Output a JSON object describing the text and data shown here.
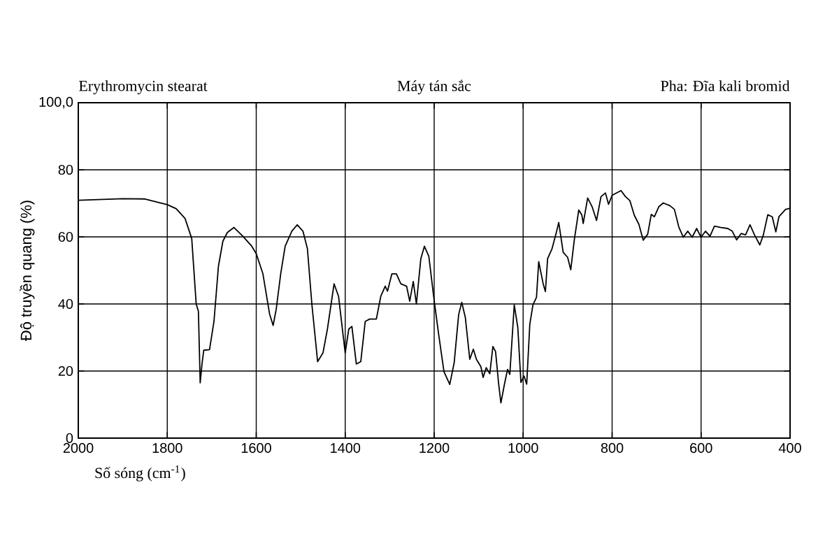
{
  "chart_data": {
    "type": "line",
    "xlabel": "Số sóng (cm$^{-1}$)",
    "ylabel": "Độ truyền quang (%)",
    "annotations": [
      "Erythromycin stearat",
      "Máy tán sắc",
      "Pha: Đĩa kali bromid"
    ],
    "xlim": [
      2000,
      400
    ],
    "ylim": [
      0,
      100
    ],
    "xticks": [
      2000,
      1800,
      1600,
      1400,
      1200,
      1000,
      800,
      600,
      400
    ],
    "yticks": [
      0,
      20,
      40,
      60,
      80,
      {
        "value": 100,
        "label": "100,0"
      }
    ],
    "grid": true,
    "marker": "none",
    "line_style": "solid",
    "series": [
      {
        "color": "#000000",
        "x": [
          2000,
          1900,
          1850,
          1800,
          1780,
          1760,
          1745,
          1735,
          1730,
          1726,
          1722,
          1718,
          1705,
          1695,
          1685,
          1675,
          1665,
          1650,
          1630,
          1610,
          1600,
          1585,
          1570,
          1562,
          1555,
          1545,
          1535,
          1520,
          1508,
          1495,
          1485,
          1475,
          1462,
          1450,
          1440,
          1425,
          1415,
          1405,
          1400,
          1392,
          1385,
          1375,
          1365,
          1355,
          1345,
          1330,
          1320,
          1310,
          1305,
          1295,
          1285,
          1275,
          1262,
          1255,
          1247,
          1240,
          1230,
          1222,
          1212,
          1200,
          1190,
          1178,
          1165,
          1155,
          1145,
          1138,
          1130,
          1120,
          1112,
          1105,
          1095,
          1090,
          1083,
          1075,
          1068,
          1062,
          1055,
          1050,
          1042,
          1035,
          1030,
          1020,
          1012,
          1005,
          998,
          992,
          985,
          978,
          970,
          965,
          955,
          950,
          945,
          935,
          925,
          920,
          910,
          900,
          893,
          885,
          875,
          868,
          865,
          855,
          845,
          835,
          825,
          815,
          808,
          800,
          790,
          780,
          770,
          760,
          750,
          740,
          730,
          720,
          712,
          705,
          695,
          685,
          670,
          660,
          650,
          640,
          630,
          620,
          610,
          600,
          590,
          580,
          570,
          555,
          540,
          530,
          520,
          510,
          500,
          490,
          480,
          468,
          460,
          450,
          440,
          432,
          425,
          410,
          400
        ],
        "values": [
          70.9,
          71.4,
          71.3,
          69.6,
          68.4,
          65.5,
          59.5,
          40,
          37.8,
          16.5,
          22,
          26.2,
          26.4,
          34.8,
          51.2,
          58.7,
          61.3,
          62.8,
          60.2,
          57.2,
          55,
          49,
          37,
          33.6,
          38.5,
          49,
          57.2,
          61.7,
          63.6,
          61.7,
          56.5,
          40,
          22.8,
          25.4,
          32.5,
          46,
          42.3,
          31,
          25.4,
          32.5,
          33.3,
          22.1,
          22.8,
          34.8,
          35.5,
          35.5,
          42.3,
          45.3,
          43.8,
          49,
          49,
          46,
          45.3,
          40.8,
          46.7,
          40,
          53.5,
          57.2,
          54.2,
          41,
          31,
          19.8,
          16,
          22.5,
          36.8,
          40.5,
          36,
          23.5,
          26.5,
          23.5,
          21.3,
          18.1,
          21,
          19.2,
          27.3,
          25.8,
          16.1,
          10.5,
          16.1,
          20.5,
          19,
          39.7,
          33,
          16.6,
          18.5,
          16.1,
          34,
          39.7,
          42,
          52.6,
          46,
          43.7,
          53.5,
          56.5,
          61.5,
          64.3,
          55.4,
          53.9,
          50.2,
          59.1,
          68,
          66.5,
          64,
          71.6,
          69,
          64.9,
          72,
          73.1,
          69.7,
          72.4,
          73.1,
          73.8,
          72,
          70.8,
          66.4,
          63.8,
          59,
          60.8,
          66.7,
          66,
          69,
          70.1,
          69.3,
          68.2,
          62.9,
          59.9,
          61.7,
          59.9,
          62.5,
          59.9,
          61.7,
          60.2,
          63.2,
          62.8,
          62.5,
          61.7,
          59.1,
          61,
          60.6,
          63.6,
          60.6,
          57.6,
          60.6,
          66.6,
          66,
          61.5,
          66,
          68.2,
          68.5
        ]
      }
    ]
  }
}
